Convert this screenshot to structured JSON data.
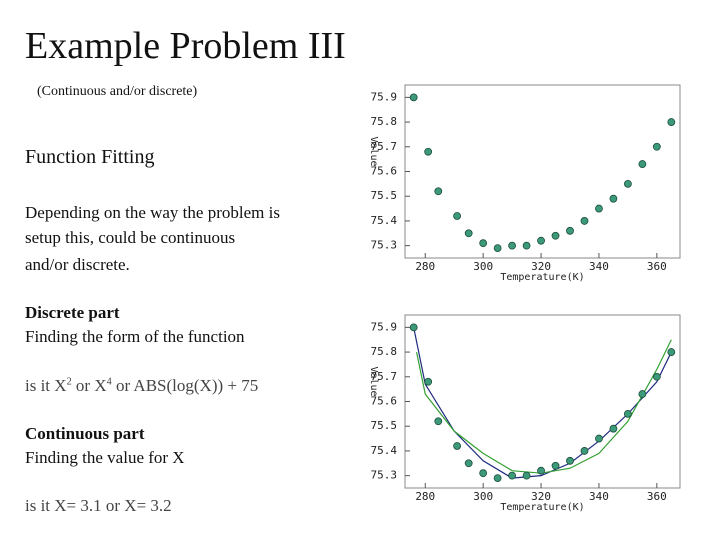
{
  "slide": {
    "title": "Example Problem III",
    "subtitle": "(Continuous and/or discrete)",
    "heading": "Function Fitting",
    "paragraph": [
      "Depending on the way the problem is",
      "setup this, could be continuous",
      "and/or discrete."
    ],
    "discrete_heading": "Discrete part",
    "discrete_text": "Finding the form of the function",
    "discrete_question": [
      "is it X",
      "2",
      " or X",
      "4",
      " or ABS(log(X)) + 75"
    ],
    "continuous_heading": "Continuous part",
    "continuous_text": "Finding the value for X",
    "continuous_question": "is it X= 3.1 or X= 3.2"
  },
  "chart_data": [
    {
      "type": "scatter",
      "xlabel": "Temperature(K)",
      "ylabel": "Value",
      "xlim": [
        273,
        368
      ],
      "ylim": [
        75.25,
        75.95
      ],
      "xticks": [
        280,
        300,
        320,
        340,
        360
      ],
      "yticks": [
        75.3,
        75.4,
        75.5,
        75.6,
        75.7,
        75.8,
        75.9
      ],
      "series": [
        {
          "color": "#3c9a78",
          "line": false,
          "x": [
            276,
            281,
            284.5,
            291,
            295,
            300,
            305,
            310,
            315,
            320,
            325,
            330,
            335,
            340,
            345,
            350,
            355,
            360,
            365
          ],
          "values": [
            75.9,
            75.68,
            75.52,
            75.42,
            75.35,
            75.31,
            75.29,
            75.3,
            75.3,
            75.32,
            75.34,
            75.36,
            75.4,
            75.45,
            75.49,
            75.55,
            75.63,
            75.7,
            75.8
          ]
        }
      ]
    },
    {
      "type": "scatter",
      "xlabel": "Temperature(K)",
      "ylabel": "Value",
      "xlim": [
        273,
        368
      ],
      "ylim": [
        75.25,
        75.95
      ],
      "xticks": [
        280,
        300,
        320,
        340,
        360
      ],
      "yticks": [
        75.3,
        75.4,
        75.5,
        75.6,
        75.7,
        75.8,
        75.9
      ],
      "series": [
        {
          "color": "#3c9a78",
          "line": false,
          "x": [
            276,
            281,
            284.5,
            291,
            295,
            300,
            305,
            310,
            315,
            320,
            325,
            330,
            335,
            340,
            345,
            350,
            355,
            360,
            365
          ],
          "values": [
            75.9,
            75.68,
            75.52,
            75.42,
            75.35,
            75.31,
            75.29,
            75.3,
            75.3,
            75.32,
            75.34,
            75.36,
            75.4,
            75.45,
            75.49,
            75.55,
            75.63,
            75.7,
            75.8
          ]
        },
        {
          "color": "#1f2a80",
          "line": true,
          "x": [
            276,
            280,
            290,
            300,
            310,
            320,
            330,
            340,
            350,
            360,
            365
          ],
          "values": [
            75.9,
            75.67,
            75.48,
            75.36,
            75.29,
            75.3,
            75.35,
            75.44,
            75.55,
            75.68,
            75.8
          ]
        },
        {
          "color": "#33a033",
          "line": true,
          "x": [
            277,
            280,
            290,
            300,
            310,
            320,
            330,
            340,
            350,
            360,
            365
          ],
          "values": [
            75.8,
            75.63,
            75.48,
            75.39,
            75.32,
            75.31,
            75.33,
            75.39,
            75.52,
            75.73,
            75.85
          ]
        }
      ]
    }
  ]
}
